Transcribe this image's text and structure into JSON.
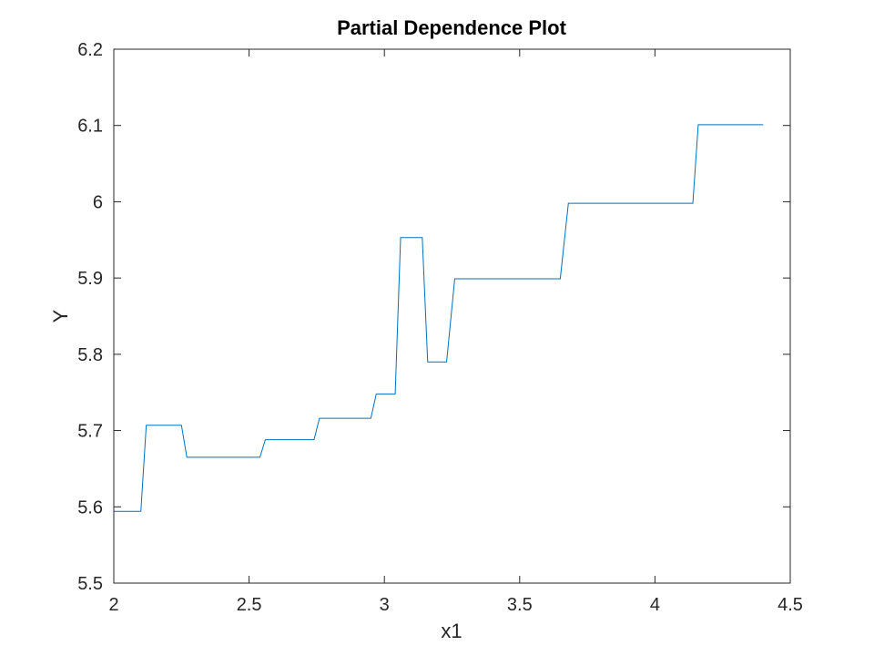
{
  "chart_data": {
    "type": "line",
    "title": "Partial Dependence Plot",
    "xlabel": "x1",
    "ylabel": "Y",
    "xlim": [
      2,
      4.5
    ],
    "ylim": [
      5.5,
      6.2
    ],
    "xticks": [
      "2",
      "2.5",
      "3",
      "3.5",
      "4",
      "4.5"
    ],
    "yticks": [
      "5.5",
      "5.6",
      "5.7",
      "5.8",
      "5.9",
      "6",
      "6.1",
      "6.2"
    ],
    "grid": false,
    "line_color": "#0072BD",
    "series": [
      {
        "x": [
          2.0,
          2.1,
          2.12,
          2.25,
          2.27,
          2.54,
          2.56,
          2.74,
          2.76,
          2.95,
          2.97,
          3.04,
          3.06,
          3.14,
          3.16,
          3.23,
          3.26,
          3.65,
          3.68,
          4.14,
          4.16,
          4.4
        ],
        "y": [
          5.594,
          5.594,
          5.707,
          5.707,
          5.665,
          5.665,
          5.688,
          5.688,
          5.716,
          5.716,
          5.748,
          5.748,
          5.953,
          5.953,
          5.79,
          5.79,
          5.899,
          5.899,
          5.998,
          5.998,
          6.101,
          6.101
        ]
      }
    ]
  }
}
